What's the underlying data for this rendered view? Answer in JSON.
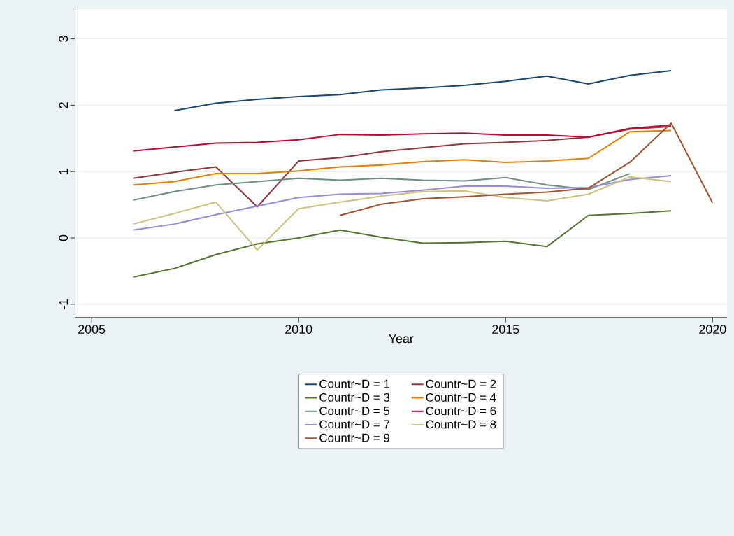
{
  "chart_data": {
    "type": "line",
    "xlabel": "Year",
    "x": [
      2006,
      2007,
      2008,
      2009,
      2010,
      2011,
      2012,
      2013,
      2014,
      2015,
      2016,
      2017,
      2018,
      2019
    ],
    "series": [
      {
        "name": "Countr~D = 1",
        "color": "#1a476f",
        "x": [
          2007,
          2008,
          2009,
          2010,
          2011,
          2012,
          2013,
          2014,
          2015,
          2016,
          2017,
          2018,
          2019
        ],
        "values": [
          1.92,
          2.03,
          2.09,
          2.13,
          2.16,
          2.23,
          2.26,
          2.3,
          2.36,
          2.44,
          2.32,
          2.45,
          2.52
        ]
      },
      {
        "name": "Countr~D = 2",
        "color": "#90353b",
        "values": [
          0.9,
          0.99,
          1.07,
          0.47,
          1.16,
          1.21,
          1.3,
          1.36,
          1.42,
          1.44,
          1.47,
          1.52,
          1.64,
          1.68
        ]
      },
      {
        "name": "Countr~D = 3",
        "color": "#55752f",
        "values": [
          -0.59,
          -0.46,
          -0.25,
          -0.09,
          0.0,
          0.12,
          0.01,
          -0.08,
          -0.07,
          -0.05,
          -0.13,
          0.34,
          0.37,
          0.41
        ]
      },
      {
        "name": "Countr~D = 4",
        "color": "#e37e00",
        "values": [
          0.8,
          0.85,
          0.97,
          0.97,
          1.01,
          1.07,
          1.1,
          1.15,
          1.18,
          1.14,
          1.16,
          1.2,
          1.6,
          1.62
        ]
      },
      {
        "name": "Countr~D = 5",
        "color": "#6e8e84",
        "x": [
          2006,
          2007,
          2008,
          2009,
          2010,
          2011,
          2012,
          2013,
          2014,
          2015,
          2016,
          2017,
          2018
        ],
        "values": [
          0.57,
          0.7,
          0.8,
          0.85,
          0.9,
          0.87,
          0.9,
          0.87,
          0.86,
          0.91,
          0.8,
          0.73,
          0.97
        ]
      },
      {
        "name": "Countr~D = 6",
        "color": "#c10534",
        "values": [
          1.31,
          1.37,
          1.43,
          1.44,
          1.48,
          1.56,
          1.55,
          1.57,
          1.58,
          1.55,
          1.55,
          1.52,
          1.65,
          1.7
        ]
      },
      {
        "name": "Countr~D = 7",
        "color": "#938dd2",
        "values": [
          0.12,
          0.21,
          0.35,
          0.48,
          0.61,
          0.66,
          0.67,
          0.72,
          0.78,
          0.78,
          0.75,
          0.76,
          0.88,
          0.94
        ]
      },
      {
        "name": "Countr~D = 8",
        "color": "#cac27e",
        "values": [
          0.21,
          0.37,
          0.54,
          -0.18,
          0.44,
          0.54,
          0.63,
          0.7,
          0.71,
          0.61,
          0.56,
          0.66,
          0.92,
          0.85
        ]
      },
      {
        "name": "Countr~D = 9",
        "color": "#a0522d",
        "x": [
          2011,
          2012,
          2013,
          2014,
          2015,
          2016,
          2017,
          2018,
          2019,
          2020
        ],
        "values": [
          0.34,
          0.51,
          0.59,
          0.62,
          0.66,
          0.69,
          0.75,
          1.14,
          1.73,
          0.53
        ]
      }
    ],
    "xlim": [
      2004.6,
      2020.35
    ],
    "ylim": [
      -1.2,
      3.45
    ],
    "xticks": [
      2005,
      2010,
      2015,
      2020
    ],
    "yticks": [
      -1,
      0,
      1,
      2,
      3
    ],
    "grid": "y",
    "legend": "bottom"
  }
}
